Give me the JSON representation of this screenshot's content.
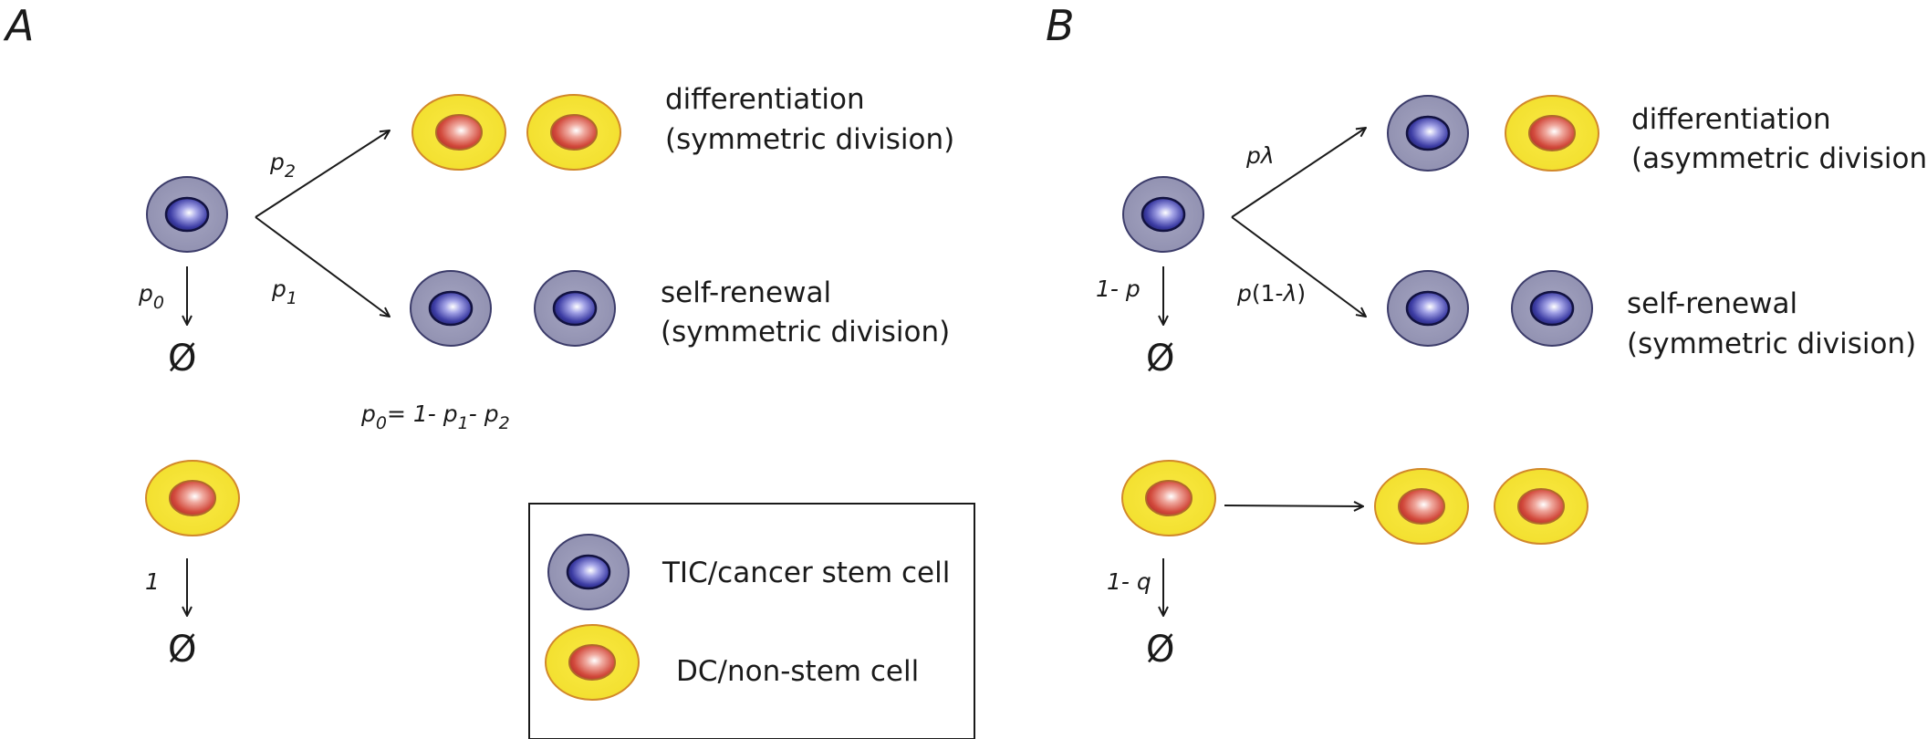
{
  "panel_a": {
    "label": "A",
    "prob_p": "p",
    "sub_0": "0",
    "sub_1": "1",
    "sub_2": "2",
    "differentiation": "differentiation",
    "differentiation_type": "(symmetric division)",
    "self_renewal": "self-renewal",
    "self_renewal_type": "(symmetric division)",
    "empty_set": "Ø",
    "dc_death_prob": "1",
    "formula": {
      "lhs_p": "p",
      "lhs_sub": "0",
      "eq": "= 1- ",
      "p1": "p",
      "p1_sub": "1",
      "minus": "- ",
      "p2": "p",
      "p2_sub": "2"
    }
  },
  "panel_b": {
    "label": "B",
    "prob_differentiation": "pλ",
    "prob_renewal_p": "p",
    "prob_renewal_rest": "(1-",
    "prob_renewal_lambda": "λ",
    "prob_renewal_close": ")",
    "prob_death": "1- p",
    "differentiation": "differentiation",
    "differentiation_type": "(asymmetric division)",
    "self_renewal": "self-renewal",
    "self_renewal_type": "(symmetric division)",
    "empty_set": "Ø",
    "dc_death_prob": "1- q"
  },
  "legend": {
    "stem_cell": "TIC/cancer stem cell",
    "non_stem_cell": "DC/non-stem cell"
  },
  "colors": {
    "stem_outer": "#9a9ab8",
    "stem_inner": "#3a3a9a",
    "dc_outer": "#f5e63a",
    "dc_inner": "#d2483a"
  }
}
